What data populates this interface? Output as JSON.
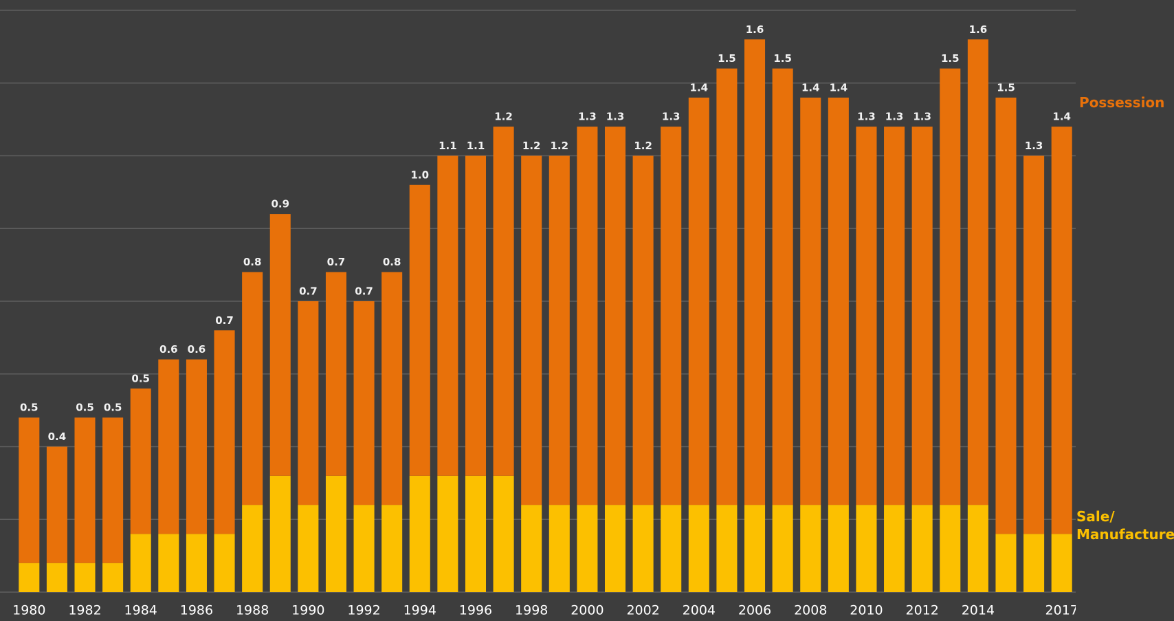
{
  "chart_data": {
    "type": "stacked_bar",
    "categories": [
      "1980",
      null,
      "1982",
      null,
      "1984",
      null,
      "1986",
      null,
      "1988",
      null,
      "1990",
      null,
      "1992",
      null,
      "1994",
      null,
      "1996",
      null,
      "1998",
      null,
      "2000",
      null,
      "2002",
      null,
      "2004",
      null,
      "2006",
      null,
      "2008",
      null,
      "2010",
      null,
      "2012",
      null,
      "2014",
      null,
      null,
      "2017"
    ],
    "series": [
      {
        "name": "Sale/ Manufacture",
        "color": "#fcc000",
        "values": [
          0.1,
          0.1,
          0.1,
          0.1,
          0.2,
          0.2,
          0.2,
          0.2,
          0.3,
          0.4,
          0.3,
          0.4,
          0.3,
          0.3,
          0.4,
          0.4,
          0.4,
          0.4,
          0.3,
          0.3,
          0.3,
          0.3,
          0.3,
          0.3,
          0.3,
          0.3,
          0.3,
          0.3,
          0.3,
          0.3,
          0.3,
          0.3,
          0.3,
          0.3,
          0.3,
          0.2,
          0.2,
          0.2
        ]
      },
      {
        "name": "Possession",
        "color": "#e8710a",
        "values": [
          0.5,
          0.4,
          0.5,
          0.5,
          0.5,
          0.6,
          0.6,
          0.7,
          0.8,
          0.9,
          0.7,
          0.7,
          0.7,
          0.8,
          1.0,
          1.1,
          1.1,
          1.2,
          1.2,
          1.2,
          1.3,
          1.3,
          1.2,
          1.3,
          1.4,
          1.5,
          1.6,
          1.5,
          1.4,
          1.4,
          1.3,
          1.3,
          1.3,
          1.5,
          1.6,
          1.5,
          1.3,
          1.4
        ],
        "value_labels": [
          "0.5",
          "0.4",
          "0.5",
          "0.5",
          "0.5",
          "0.6",
          "0.6",
          "0.7",
          "0.8",
          "0.9",
          "0.7",
          "0.7",
          "0.7",
          "0.8",
          "1.0",
          "1.1",
          "1.1",
          "1.2",
          "1.2",
          "1.2",
          "1.3",
          "1.3",
          "1.2",
          "1.3",
          "1.4",
          "1.5",
          "1.6",
          "1.5",
          "1.4",
          "1.4",
          "1.3",
          "1.3",
          "1.3",
          "1.5",
          "1.6",
          "1.5",
          "1.3",
          "1.4"
        ]
      }
    ],
    "ylim": [
      0,
      2
    ],
    "yticks": [
      0,
      0.25,
      0.5,
      0.75,
      1,
      1.25,
      1.5,
      1.75,
      2
    ],
    "grid": true
  }
}
